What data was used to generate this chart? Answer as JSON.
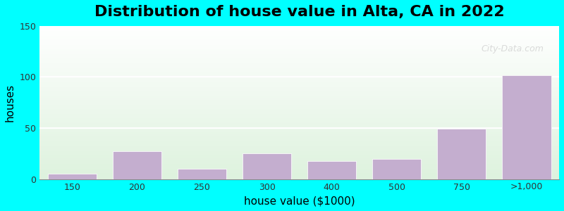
{
  "title": "Distribution of house value in Alta, CA in 2022",
  "xlabel": "house value ($1000)",
  "ylabel": "houses",
  "bar_labels": [
    "150",
    "200",
    "250",
    "300",
    "400",
    "500",
    "750",
    ">1,000"
  ],
  "bar_heights": [
    5,
    27,
    10,
    25,
    18,
    20,
    49,
    102
  ],
  "bar_color": "#C4AECF",
  "bar_edge_color": "#C4AECF",
  "bar_widths": [
    0.8,
    0.8,
    0.8,
    0.8,
    0.8,
    0.8,
    0.8,
    0.8
  ],
  "ylim": [
    0,
    150
  ],
  "yticks": [
    0,
    50,
    100,
    150
  ],
  "outer_bg_color": "#00FFFF",
  "plot_bg_top_color": "#FFFFFF",
  "plot_bg_bottom_color": "#DDEEDD",
  "watermark_text": "City-Data.com",
  "title_fontsize": 16,
  "axis_label_fontsize": 11
}
